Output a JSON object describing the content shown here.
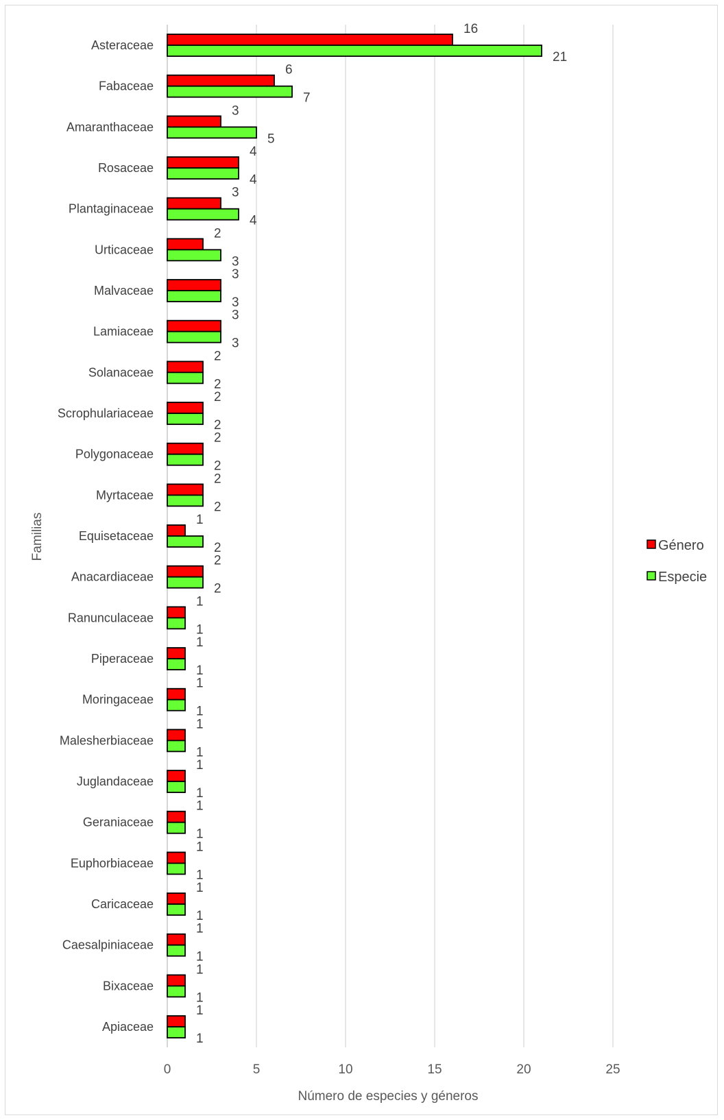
{
  "chart_data": {
    "type": "bar",
    "orientation": "horizontal",
    "title": "",
    "xlabel": "Número de especies y géneros",
    "ylabel": "Familias",
    "xlim": [
      0,
      25
    ],
    "xticks": [
      "0",
      "5",
      "10",
      "15",
      "20",
      "25"
    ],
    "grid": true,
    "legend_position": "right",
    "categories": [
      "Asteraceae",
      "Fabaceae",
      "Amaranthaceae",
      "Rosaceae",
      "Plantaginaceae",
      "Urticaceae",
      "Malvaceae",
      "Lamiaceae",
      "Solanaceae",
      "Scrophulariaceae",
      "Polygonaceae",
      "Myrtaceae",
      "Equisetaceae",
      "Anacardiaceae",
      "Ranunculaceae",
      "Piperaceae",
      "Moringaceae",
      "Malesherbiaceae",
      "Juglandaceae",
      "Geraniaceae",
      "Euphorbiaceae",
      "Caricaceae",
      "Caesalpiniaceae",
      "Bixaceae",
      "Apiaceae"
    ],
    "series": [
      {
        "name": "Género",
        "color": "#ff0000",
        "values": [
          16,
          6,
          3,
          4,
          3,
          2,
          3,
          3,
          2,
          2,
          2,
          2,
          1,
          2,
          1,
          1,
          1,
          1,
          1,
          1,
          1,
          1,
          1,
          1,
          1
        ]
      },
      {
        "name": "Especie",
        "color": "#66ff33",
        "values": [
          21,
          7,
          5,
          4,
          4,
          3,
          3,
          3,
          2,
          2,
          2,
          2,
          2,
          2,
          1,
          1,
          1,
          1,
          1,
          1,
          1,
          1,
          1,
          1,
          1
        ]
      }
    ]
  }
}
